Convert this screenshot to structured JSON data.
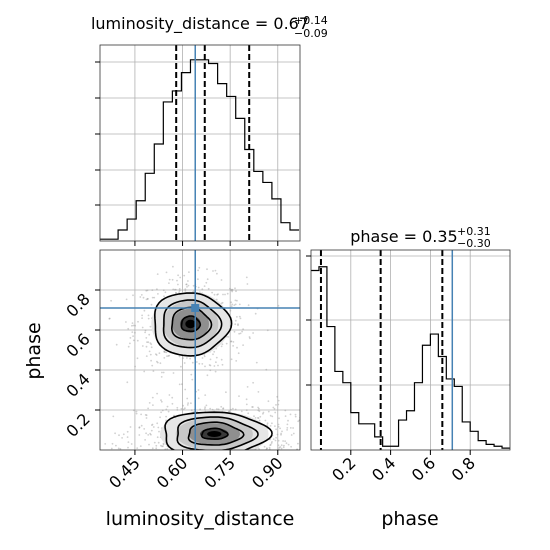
{
  "chart_data": {
    "type": "corner",
    "truth": {
      "luminosity_distance": 0.64,
      "phase": 0.71
    },
    "panels": {
      "dist_hist": {
        "title_param": "luminosity_distance",
        "title_value": "0.67",
        "title_plus": "+0.14",
        "title_minus": "−0.09",
        "xlim": [
          0.34,
          0.97
        ],
        "quantiles": [
          0.58,
          0.67,
          0.81
        ],
        "bin_edges": [
          0.34,
          0.3685,
          0.397,
          0.4255,
          0.454,
          0.4825,
          0.511,
          0.5395,
          0.568,
          0.5965,
          0.625,
          0.6535,
          0.682,
          0.7105,
          0.739,
          0.7675,
          0.796,
          0.8245,
          0.853,
          0.8815,
          0.91,
          0.9385,
          0.967
        ],
        "counts": [
          0.01,
          0.01,
          0.06,
          0.12,
          0.22,
          0.37,
          0.53,
          0.76,
          0.82,
          0.92,
          0.99,
          0.99,
          0.97,
          0.86,
          0.79,
          0.67,
          0.5,
          0.38,
          0.32,
          0.23,
          0.1,
          0.06
        ],
        "ylim": [
          0,
          1.0
        ]
      },
      "phase_hist": {
        "title_param": "phase",
        "title_value": "0.35",
        "title_plus": "+0.31",
        "title_minus": "−0.30",
        "xlim": [
          0.0,
          1.0
        ],
        "quantiles": [
          0.05,
          0.35,
          0.66
        ],
        "bin_edges": [
          0.0,
          0.04,
          0.08,
          0.12,
          0.16,
          0.2,
          0.24,
          0.28,
          0.32,
          0.36,
          0.4,
          0.44,
          0.48,
          0.52,
          0.56,
          0.6,
          0.64,
          0.68,
          0.72,
          0.76,
          0.8,
          0.84,
          0.88,
          0.92,
          0.96,
          1.0
        ],
        "counts": [
          0.96,
          0.98,
          0.66,
          0.42,
          0.36,
          0.2,
          0.14,
          0.14,
          0.07,
          0.02,
          0.02,
          0.16,
          0.21,
          0.36,
          0.56,
          0.62,
          0.5,
          0.38,
          0.34,
          0.15,
          0.1,
          0.05,
          0.03,
          0.02,
          0.01
        ],
        "ylim": [
          0,
          1.0
        ]
      },
      "joint": {
        "xlabel": "luminosity_distance",
        "ylabel": "phase",
        "xlim": [
          0.34,
          0.97
        ],
        "ylim": [
          0.0,
          1.0
        ],
        "x_ticks": [
          "0.45",
          "0.60",
          "0.75",
          "0.90"
        ],
        "x_tick_values": [
          0.45,
          0.6,
          0.75,
          0.9
        ],
        "y_ticks": [
          "0.2",
          "0.4",
          "0.6",
          "0.8"
        ],
        "y_tick_values": [
          0.2,
          0.4,
          0.6,
          0.8
        ],
        "modes": [
          {
            "cx": 0.625,
            "cy": 0.63,
            "sx": 0.065,
            "sy": 0.085
          },
          {
            "cx": 0.7,
            "cy": 0.08,
            "sx": 0.09,
            "sy": 0.06
          }
        ]
      },
      "phase_axis": {
        "xlabel": "phase",
        "x_ticks": [
          "0.2",
          "0.4",
          "0.6",
          "0.8"
        ],
        "x_tick_values": [
          0.2,
          0.4,
          0.6,
          0.8
        ]
      }
    },
    "colors": {
      "truth": "#4682b4",
      "line": "#000000",
      "grid": "#b0b0b0"
    },
    "grid": true
  }
}
